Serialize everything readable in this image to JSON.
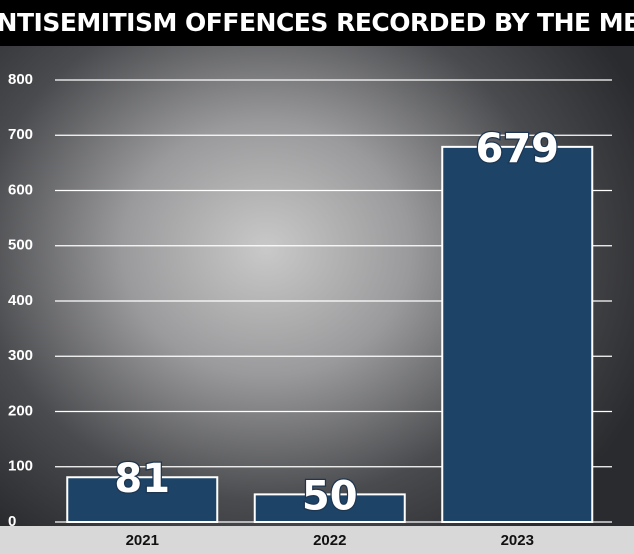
{
  "chart_data": {
    "type": "bar",
    "title": "ANTISEMITISM OFFENCES RECORDED BY THE MET",
    "categories": [
      "2021",
      "2022",
      "2023"
    ],
    "values": [
      81,
      50,
      679
    ],
    "color": "#1d4366",
    "ylim": [
      0,
      800
    ],
    "yticks": [
      0,
      100,
      200,
      300,
      400,
      500,
      600,
      700,
      800
    ],
    "grid": true
  }
}
